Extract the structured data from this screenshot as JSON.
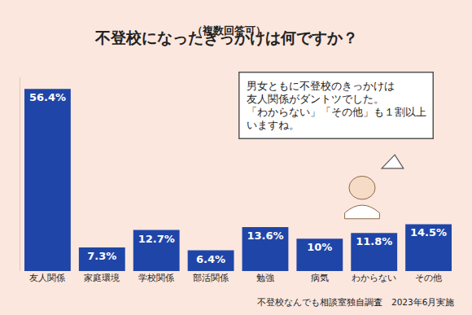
{
  "chart_data": {
    "type": "bar",
    "title": "不登校になったきっかけは何ですか？",
    "subtitle": "（複数回答可）",
    "categories": [
      "友人関係",
      "家庭環境",
      "学校関係",
      "部活関係",
      "勉強",
      "病気",
      "わからない",
      "その他"
    ],
    "values": [
      56.4,
      7.3,
      12.7,
      6.4,
      13.6,
      10,
      11.8,
      14.5
    ],
    "value_labels": [
      "56.4%",
      "7.3%",
      "12.7%",
      "6.4%",
      "13.6%",
      "10%",
      "11.8%",
      "14.5%"
    ],
    "color": "#1f45a8",
    "data_labels": true,
    "ylim": [
      0,
      60
    ],
    "yticks": [],
    "tick_labels": "x",
    "grid": false,
    "annotations": [
      "男女ともに不登校のきっかけは\n友人関係がダントツでした。\n「わからない」「その他」も１割以上\nいますね。"
    ],
    "source": "不登校なんでも相談室独自調査　2023年6月実施"
  }
}
